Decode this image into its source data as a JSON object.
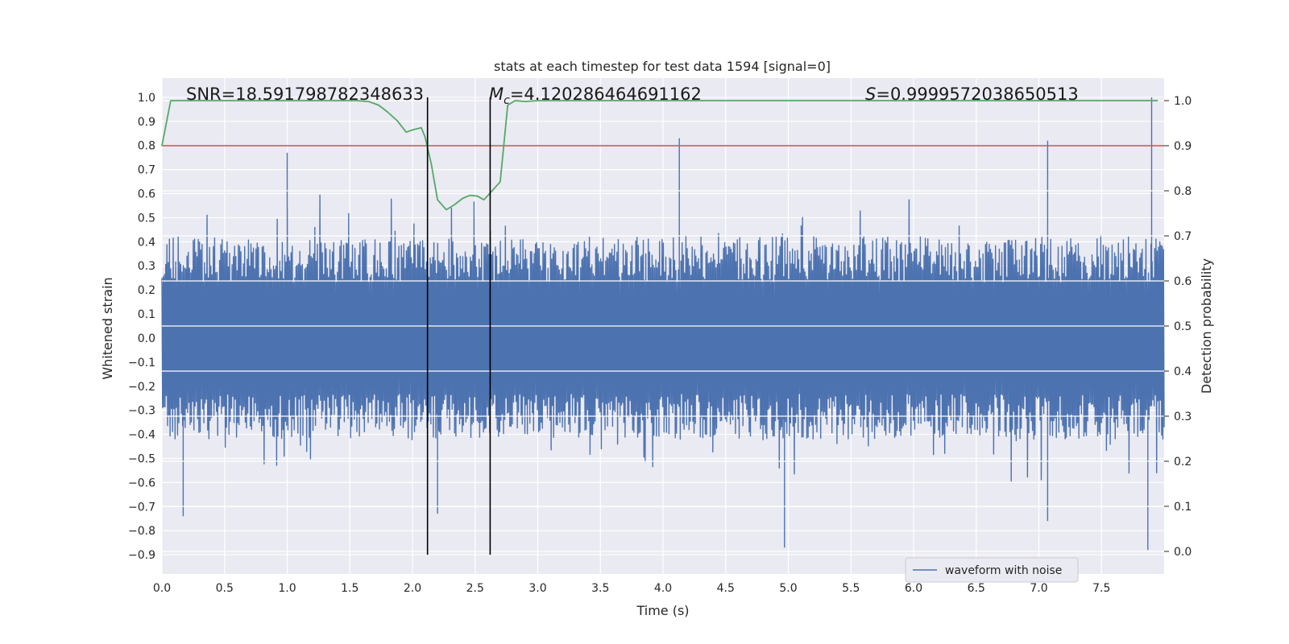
{
  "chart_data": {
    "type": "line",
    "title": "stats at each timestep for test data 1594 [signal=0]",
    "xlabel": "Time (s)",
    "ylabel": "Whitened strain",
    "y2label": "Detection probability",
    "xlim": [
      0.0,
      8.0
    ],
    "ylim": [
      -0.98,
      1.08
    ],
    "y2lim": [
      -0.05,
      1.05
    ],
    "x_ticks": [
      0.0,
      0.5,
      1.0,
      1.5,
      2.0,
      2.5,
      3.0,
      3.5,
      4.0,
      4.5,
      5.0,
      5.5,
      6.0,
      6.5,
      7.0,
      7.5
    ],
    "x_tick_labels": [
      "0.0",
      "0.5",
      "1.0",
      "1.5",
      "2.0",
      "2.5",
      "3.0",
      "3.5",
      "4.0",
      "4.5",
      "5.0",
      "5.5",
      "6.0",
      "6.5",
      "7.0",
      "7.5"
    ],
    "y_ticks": [
      -0.9,
      -0.8,
      -0.7,
      -0.6,
      -0.5,
      -0.4,
      -0.3,
      -0.2,
      -0.1,
      0.0,
      0.1,
      0.2,
      0.3,
      0.4,
      0.5,
      0.6,
      0.7,
      0.8,
      0.9,
      1.0
    ],
    "y_tick_labels": [
      "−0.9",
      "−0.8",
      "−0.7",
      "−0.6",
      "−0.5",
      "−0.4",
      "−0.3",
      "−0.2",
      "−0.1",
      "0.0",
      "0.1",
      "0.2",
      "0.3",
      "0.4",
      "0.5",
      "0.6",
      "0.7",
      "0.8",
      "0.9",
      "1.0"
    ],
    "y2_ticks": [
      0.0,
      0.1,
      0.2,
      0.3,
      0.4,
      0.5,
      0.6,
      0.7,
      0.8,
      0.9,
      1.0
    ],
    "y2_tick_labels": [
      "0.0",
      "0.1",
      "0.2",
      "0.3",
      "0.4",
      "0.5",
      "0.6",
      "0.7",
      "0.8",
      "0.9",
      "1.0"
    ],
    "grid": true,
    "legend_position": "bottom-right",
    "annotations": {
      "snr": "SNR=18.591798782348633",
      "mc_symbol": "M",
      "mc_subscript": "c",
      "mc_value": "=4.120286464691162",
      "s_symbol": "S",
      "s_value": "=0.9999572038650513"
    },
    "series": [
      {
        "name": "waveform with noise",
        "color": "#4c72b0",
        "duration": 8.0,
        "samples": 1600,
        "envelope": {
          "upper_typical": 0.42,
          "lower_typical": -0.42,
          "max": 1.0,
          "min": -0.88
        },
        "notable_peaks": [
          {
            "x": 1.0,
            "y": 0.77
          },
          {
            "x": 4.13,
            "y": 0.83
          },
          {
            "x": 7.07,
            "y": 0.82
          },
          {
            "x": 7.9,
            "y": 1.0
          },
          {
            "x": 4.97,
            "y": -0.87
          },
          {
            "x": 7.87,
            "y": -0.88
          },
          {
            "x": 7.07,
            "y": -0.76
          },
          {
            "x": 2.2,
            "y": -0.73
          },
          {
            "x": 0.17,
            "y": -0.74
          }
        ]
      },
      {
        "color": "#55a868",
        "axis": "right",
        "x": [
          0.0,
          0.07,
          0.15,
          0.3,
          0.5,
          0.8,
          1.0,
          1.2,
          1.4,
          1.55,
          1.65,
          1.73,
          1.8,
          1.88,
          1.95,
          2.0,
          2.07,
          2.1,
          2.15,
          2.2,
          2.27,
          2.33,
          2.4,
          2.46,
          2.52,
          2.57,
          2.62,
          2.7,
          2.76,
          2.82,
          2.9,
          3.0,
          3.2,
          3.5,
          4.0,
          5.0,
          6.0,
          7.0,
          7.95
        ],
        "values": [
          0.9,
          1.0,
          1.0,
          1.0,
          1.0,
          1.0,
          1.0,
          1.0,
          1.0,
          1.0,
          0.998,
          0.99,
          0.975,
          0.955,
          0.93,
          0.935,
          0.94,
          0.92,
          0.86,
          0.78,
          0.758,
          0.768,
          0.783,
          0.79,
          0.788,
          0.78,
          0.795,
          0.82,
          0.99,
          1.0,
          0.998,
          1.0,
          1.0,
          1.0,
          1.0,
          1.0,
          1.0,
          1.0,
          1.0
        ]
      },
      {
        "color": "#c44e52",
        "axis": "right",
        "kind": "hline",
        "value": 0.9
      },
      {
        "color": "#000000",
        "kind": "vlines",
        "x": [
          2.12,
          2.62
        ],
        "range": [
          -0.9,
          1.0
        ]
      }
    ]
  }
}
